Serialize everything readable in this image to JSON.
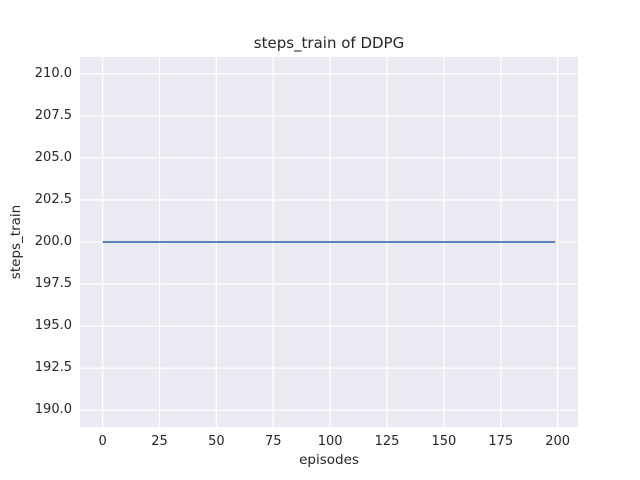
{
  "colors": {
    "figure_bg": "#ffffff",
    "plot_bg": "#eaeaf2",
    "grid": "#ffffff",
    "line": "#4c72b0",
    "text": "#262626"
  },
  "chart_data": {
    "type": "line",
    "title": "steps_train of DDPG",
    "xlabel": "episodes",
    "ylabel": "steps_train",
    "xlim": [
      -9.95,
      208.95
    ],
    "ylim": [
      189.0,
      211.0
    ],
    "xticks": [
      0,
      25,
      50,
      75,
      100,
      125,
      150,
      175,
      200
    ],
    "xtick_labels": [
      "0",
      "25",
      "50",
      "75",
      "100",
      "125",
      "150",
      "175",
      "200"
    ],
    "yticks": [
      190.0,
      192.5,
      195.0,
      197.5,
      200.0,
      202.5,
      205.0,
      207.5,
      210.0
    ],
    "ytick_labels": [
      "190.0",
      "192.5",
      "195.0",
      "197.5",
      "200.0",
      "202.5",
      "205.0",
      "207.5",
      "210.0"
    ],
    "grid": true,
    "legend_position": "none",
    "series": [
      {
        "name": "steps_train",
        "color": "#4c72b0",
        "line_width": 1.8,
        "x": [
          0,
          199
        ],
        "y": [
          200,
          200
        ],
        "description": "constant value 200 for every episode from 0 to 199"
      }
    ]
  }
}
